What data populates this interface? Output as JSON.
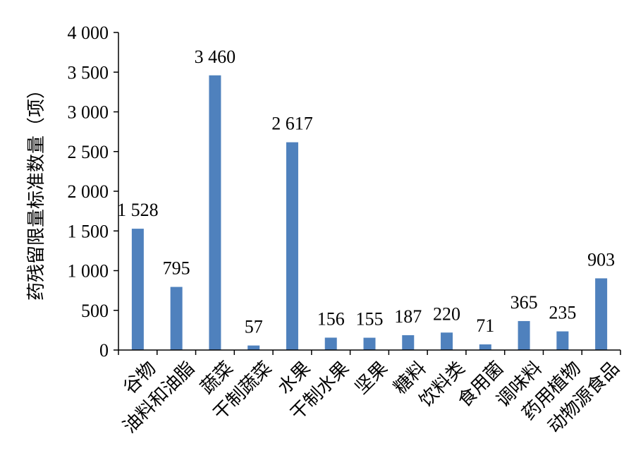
{
  "chart_data": {
    "type": "bar",
    "ylabel": "药残留限量标准数量（项）",
    "xlabel": "",
    "ylim": [
      0,
      4000
    ],
    "yticks": [
      0,
      500,
      1000,
      1500,
      2000,
      2500,
      3000,
      3500,
      4000
    ],
    "ytick_labels": [
      "0",
      "500",
      "1 000",
      "1 500",
      "2 000",
      "2 500",
      "3 000",
      "3 500",
      "4 000"
    ],
    "categories": [
      "谷物",
      "油料和油脂",
      "蔬菜",
      "干制蔬菜",
      "水果",
      "干制水果",
      "坚果",
      "糖料",
      "饮料类",
      "食用菌",
      "调味料",
      "药用植物",
      "动物源食品"
    ],
    "values": [
      1528,
      795,
      3460,
      57,
      2617,
      156,
      155,
      187,
      220,
      71,
      365,
      235,
      903
    ],
    "value_labels": [
      "1 528",
      "795",
      "3 460",
      "57",
      "2 617",
      "156",
      "155",
      "187",
      "220",
      "71",
      "365",
      "235",
      "903"
    ],
    "bar_color": "#4F81BD",
    "grid": false,
    "legend": "none"
  }
}
